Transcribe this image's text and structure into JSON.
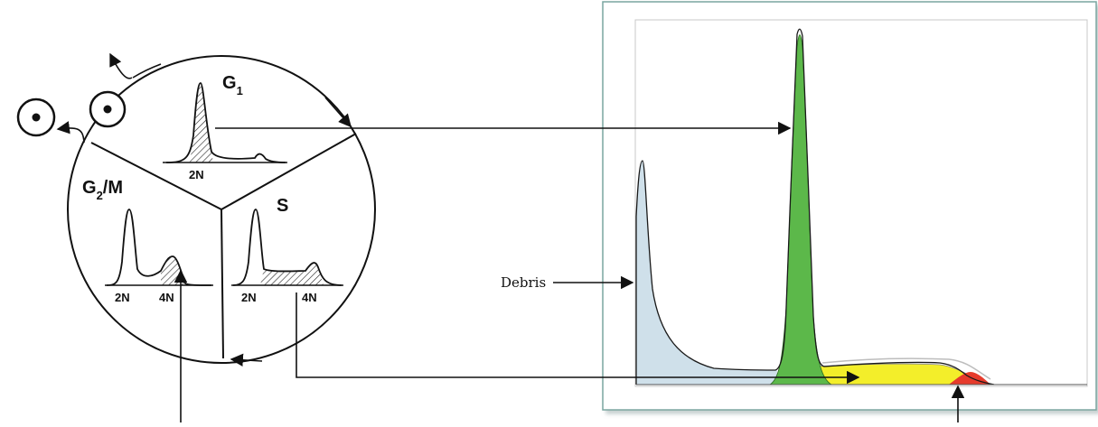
{
  "cycle": {
    "phase_g1": {
      "base": "G",
      "sub": "1"
    },
    "phase_s": "S",
    "phase_g2m": {
      "base": "G",
      "sub": "2",
      "suffix": "/M"
    },
    "g1_axis": "2N",
    "g2m_axis": [
      "2N",
      "4N"
    ],
    "s_axis": [
      "2N",
      "4N"
    ]
  },
  "histogram": {
    "debris_label": "Debris",
    "colors": {
      "debris": "#cfe0ea",
      "g1": "#5cb84a",
      "s": "#f3ee2a",
      "g2m": "#e63b2c",
      "frame": "#7aa6a0",
      "outline": "#1a1a1a"
    }
  }
}
